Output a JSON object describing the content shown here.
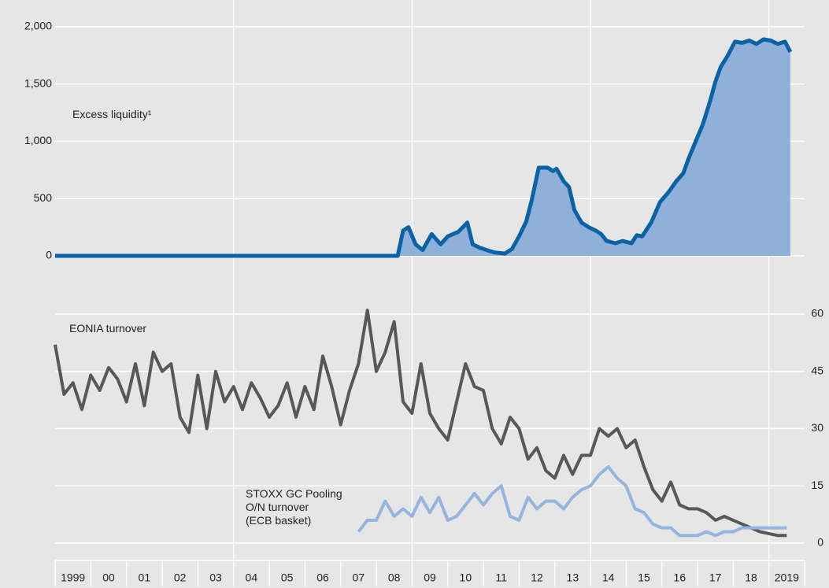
{
  "chart_data": [
    {
      "type": "area",
      "axis_side": "left",
      "xlim": [
        1999,
        2020
      ],
      "ylim": [
        0,
        2000
      ],
      "yticks": [
        0,
        500,
        {
          "value": 1000,
          "label": "1,000"
        },
        {
          "value": 1500,
          "label": "1,500"
        },
        {
          "value": 2000,
          "label": "2,000"
        }
      ],
      "grid": true,
      "series": [
        {
          "name": "Excess liquidity¹",
          "color": "#0b62a4",
          "fill": "#8fb0d9",
          "x": [
            1999,
            2008.6,
            2008.75,
            2008.9,
            2009.1,
            2009.3,
            2009.55,
            2009.8,
            2010.0,
            2010.3,
            2010.55,
            2010.7,
            2010.9,
            2011.1,
            2011.3,
            2011.6,
            2011.8,
            2012.0,
            2012.2,
            2012.35,
            2012.55,
            2012.8,
            2012.95,
            2013.05,
            2013.25,
            2013.4,
            2013.55,
            2013.75,
            2013.95,
            2014.15,
            2014.3,
            2014.45,
            2014.7,
            2014.9,
            2015.15,
            2015.3,
            2015.45,
            2015.7,
            2015.95,
            2016.2,
            2016.4,
            2016.6,
            2016.75,
            2016.95,
            2017.15,
            2017.35,
            2017.5,
            2017.65,
            2017.85,
            2018.05,
            2018.25,
            2018.45,
            2018.65,
            2018.85,
            2019.05,
            2019.25,
            2019.45,
            2019.6
          ],
          "values": [
            0,
            0,
            220,
            250,
            100,
            50,
            190,
            100,
            170,
            210,
            290,
            100,
            70,
            50,
            30,
            20,
            60,
            170,
            300,
            480,
            770,
            770,
            740,
            760,
            650,
            600,
            400,
            290,
            250,
            220,
            190,
            130,
            110,
            130,
            110,
            180,
            170,
            290,
            470,
            560,
            650,
            720,
            850,
            1000,
            1150,
            1350,
            1520,
            1650,
            1750,
            1870,
            1860,
            1880,
            1850,
            1890,
            1880,
            1850,
            1870,
            1780
          ]
        }
      ]
    },
    {
      "type": "line",
      "axis_side": "right",
      "xlim": [
        1999,
        2020
      ],
      "ylim": [
        0,
        60
      ],
      "yticks": [
        0,
        15,
        30,
        45,
        60
      ],
      "grid": true,
      "xticks": [
        {
          "value": 1999.5,
          "label": "1999"
        },
        {
          "value": 2000.5,
          "label": "00"
        },
        {
          "value": 2001.5,
          "label": "01"
        },
        {
          "value": 2002.5,
          "label": "02"
        },
        {
          "value": 2003.5,
          "label": "03"
        },
        {
          "value": 2004.5,
          "label": "04"
        },
        {
          "value": 2005.5,
          "label": "05"
        },
        {
          "value": 2006.5,
          "label": "06"
        },
        {
          "value": 2007.5,
          "label": "07"
        },
        {
          "value": 2008.5,
          "label": "08"
        },
        {
          "value": 2009.5,
          "label": "09"
        },
        {
          "value": 2010.5,
          "label": "10"
        },
        {
          "value": 2011.5,
          "label": "11"
        },
        {
          "value": 2012.5,
          "label": "12"
        },
        {
          "value": 2013.5,
          "label": "13"
        },
        {
          "value": 2014.5,
          "label": "14"
        },
        {
          "value": 2015.5,
          "label": "15"
        },
        {
          "value": 2016.5,
          "label": "16"
        },
        {
          "value": 2017.5,
          "label": "17"
        },
        {
          "value": 2018.5,
          "label": "18"
        },
        {
          "value": 2019.5,
          "label": "2019"
        }
      ],
      "xtick_marks": [
        1999,
        2000,
        2001,
        2002,
        2003,
        2004,
        2005,
        2006,
        2007,
        2008,
        2009,
        2010,
        2011,
        2012,
        2013,
        2014,
        2015,
        2016,
        2017,
        2018,
        2019,
        2020
      ],
      "xgrid": [
        2004,
        2009,
        2014,
        2019
      ],
      "series": [
        {
          "name": "EONIA turnover",
          "color": "#58585a",
          "x": [
            1999.0,
            1999.25,
            1999.5,
            1999.75,
            2000.0,
            2000.25,
            2000.5,
            2000.75,
            2001.0,
            2001.25,
            2001.5,
            2001.75,
            2002.0,
            2002.25,
            2002.5,
            2002.75,
            2003.0,
            2003.25,
            2003.5,
            2003.75,
            2004.0,
            2004.25,
            2004.5,
            2004.75,
            2005.0,
            2005.25,
            2005.5,
            2005.75,
            2006.0,
            2006.25,
            2006.5,
            2006.75,
            2007.0,
            2007.25,
            2007.5,
            2007.75,
            2008.0,
            2008.25,
            2008.5,
            2008.75,
            2009.0,
            2009.25,
            2009.5,
            2009.75,
            2010.0,
            2010.25,
            2010.5,
            2010.75,
            2011.0,
            2011.25,
            2011.5,
            2011.75,
            2012.0,
            2012.25,
            2012.5,
            2012.75,
            2013.0,
            2013.25,
            2013.5,
            2013.75,
            2014.0,
            2014.25,
            2014.5,
            2014.75,
            2015.0,
            2015.25,
            2015.5,
            2015.75,
            2016.0,
            2016.25,
            2016.5,
            2016.75,
            2017.0,
            2017.25,
            2017.5,
            2017.75,
            2018.0,
            2018.25,
            2018.5,
            2018.75,
            2019.0,
            2019.25,
            2019.5
          ],
          "values": [
            52,
            39,
            42,
            35,
            44,
            40,
            46,
            43,
            37,
            47,
            36,
            50,
            45,
            47,
            33,
            29,
            44,
            30,
            45,
            37,
            41,
            35,
            42,
            38,
            33,
            36,
            42,
            33,
            41,
            35,
            49,
            41,
            31,
            40,
            47,
            61,
            45,
            50,
            58,
            37,
            34,
            47,
            34,
            30,
            27,
            37,
            47,
            41,
            40,
            30,
            26,
            33,
            30,
            22,
            25,
            19,
            17,
            23,
            18,
            23,
            23,
            30,
            28,
            30,
            25,
            27,
            20,
            14,
            11,
            16,
            10,
            9,
            9,
            8,
            6,
            7,
            6,
            5,
            4,
            3,
            2.5,
            2,
            2
          ]
        },
        {
          "name": [
            "STOXX GC Pooling",
            "O/N turnover",
            "(ECB basket)"
          ],
          "color": "#95b4e0",
          "x": [
            2007.5,
            2007.75,
            2008.0,
            2008.25,
            2008.5,
            2008.75,
            2009.0,
            2009.25,
            2009.5,
            2009.75,
            2010.0,
            2010.25,
            2010.5,
            2010.75,
            2011.0,
            2011.25,
            2011.5,
            2011.75,
            2012.0,
            2012.25,
            2012.5,
            2012.75,
            2013.0,
            2013.25,
            2013.5,
            2013.75,
            2014.0,
            2014.25,
            2014.5,
            2014.75,
            2015.0,
            2015.25,
            2015.5,
            2015.75,
            2016.0,
            2016.25,
            2016.5,
            2016.75,
            2017.0,
            2017.25,
            2017.5,
            2017.75,
            2018.0,
            2018.25,
            2018.5,
            2018.75,
            2019.0,
            2019.25,
            2019.5
          ],
          "values": [
            3,
            6,
            6,
            11,
            7,
            9,
            7,
            12,
            8,
            12,
            6,
            7,
            10,
            13,
            10,
            13,
            15,
            7,
            6,
            12,
            9,
            11,
            11,
            9,
            12,
            14,
            15,
            18,
            20,
            17,
            15,
            9,
            8,
            5,
            4,
            4,
            2,
            2,
            2,
            3,
            2,
            3,
            3,
            4,
            4,
            4,
            4,
            4,
            4
          ]
        }
      ]
    }
  ]
}
